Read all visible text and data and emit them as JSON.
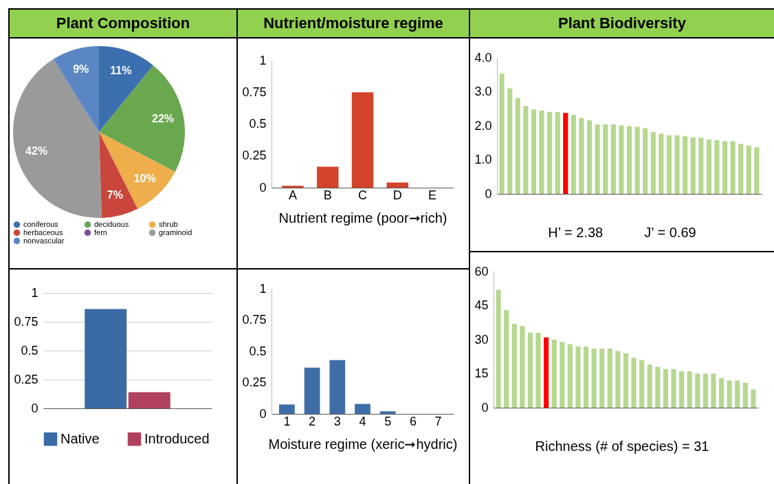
{
  "chart_data": [
    {
      "type": "pie",
      "title": "Plant Composition",
      "categories": [
        "coniferous",
        "deciduous",
        "shrub",
        "herbaceous",
        "fern",
        "graminoid",
        "nonvascular"
      ],
      "values": [
        11,
        22,
        10,
        7,
        0,
        42,
        9
      ],
      "value_labels": [
        "11%",
        "22%",
        "10%",
        "7%",
        null,
        "42%",
        "9%"
      ],
      "colors": [
        "#3b6fb0",
        "#6aa84f",
        "#efae4c",
        "#c8463b",
        "#7b4f9d",
        "#9a9a9a",
        "#5a86c4"
      ],
      "legend": "bottom"
    },
    {
      "type": "bar",
      "categories": [
        null
      ],
      "series": [
        {
          "name": "Native",
          "color": "#3a6ba5",
          "values": [
            0.86
          ]
        },
        {
          "name": "Introduced",
          "color": "#b2405f",
          "values": [
            0.14
          ]
        }
      ],
      "ylim": [
        0,
        1
      ],
      "yticks": [
        0,
        0.25,
        0.5,
        0.75,
        1
      ],
      "grid": "y",
      "legend": "bottom"
    },
    {
      "type": "bar",
      "title": "Nutrient/moisture regime",
      "categories": [
        "A",
        "B",
        "C",
        "D",
        "E"
      ],
      "values": [
        0.015,
        0.165,
        0.75,
        0.04,
        0
      ],
      "color": "#d4432b",
      "ylim": [
        0,
        1
      ],
      "yticks": [
        0,
        0.25,
        0.5,
        0.75,
        1
      ],
      "xlabel": "Nutrient regime (poor➞rich)"
    },
    {
      "type": "bar",
      "categories": [
        "1",
        "2",
        "3",
        "4",
        "5",
        "6",
        "7"
      ],
      "values": [
        0.075,
        0.37,
        0.43,
        0.08,
        0.02,
        0,
        0
      ],
      "color": "#3f6ea6",
      "ylim": [
        0,
        1
      ],
      "yticks": [
        0,
        0.25,
        0.5,
        0.75,
        1
      ],
      "xlabel": "Moisture regime (xeric➞hydric)"
    },
    {
      "type": "bar",
      "title": "Plant Biodiversity",
      "categories": [
        null,
        null,
        null,
        null,
        null,
        null,
        null,
        null,
        null,
        null,
        null,
        null,
        null,
        null,
        null,
        null,
        null,
        null,
        null,
        null,
        null,
        null,
        null,
        null,
        null,
        null,
        null,
        null,
        null,
        null,
        null,
        null,
        null
      ],
      "values": [
        3.53,
        3.1,
        2.82,
        2.58,
        2.48,
        2.45,
        2.41,
        2.4,
        2.38,
        2.32,
        2.23,
        2.16,
        2.04,
        2.04,
        2.04,
        2.01,
        1.99,
        1.97,
        1.93,
        1.82,
        1.77,
        1.72,
        1.72,
        1.69,
        1.66,
        1.65,
        1.6,
        1.58,
        1.55,
        1.55,
        1.47,
        1.42,
        1.37
      ],
      "colors": [
        "#b6d88f",
        "#b6d88f",
        "#b6d88f",
        "#b6d88f",
        "#b6d88f",
        "#b6d88f",
        "#b6d88f",
        "#b6d88f",
        "#ff0000",
        "#b6d88f",
        "#b6d88f",
        "#b6d88f",
        "#b6d88f",
        "#b6d88f",
        "#b6d88f",
        "#b6d88f",
        "#b6d88f",
        "#b6d88f",
        "#b6d88f",
        "#b6d88f",
        "#b6d88f",
        "#b6d88f",
        "#b6d88f",
        "#b6d88f",
        "#b6d88f",
        "#b6d88f",
        "#b6d88f",
        "#b6d88f",
        "#b6d88f",
        "#b6d88f",
        "#b6d88f",
        "#b6d88f",
        "#b6d88f"
      ],
      "ylim": [
        0,
        4
      ],
      "yticks": [
        0,
        {
          "value": 1,
          "label": "1.0"
        },
        {
          "value": 2,
          "label": "2.0"
        },
        {
          "value": 3,
          "label": "3.0"
        },
        {
          "value": 4,
          "label": "4.0"
        }
      ],
      "annotations": [
        "H’ = 2.38",
        "J’ = 0.69"
      ]
    },
    {
      "type": "bar",
      "categories": [
        null,
        null,
        null,
        null,
        null,
        null,
        null,
        null,
        null,
        null,
        null,
        null,
        null,
        null,
        null,
        null,
        null,
        null,
        null,
        null,
        null,
        null,
        null,
        null,
        null,
        null,
        null,
        null,
        null,
        null,
        null,
        null,
        null
      ],
      "values": [
        52,
        43,
        37,
        36,
        33,
        33,
        31,
        30,
        29,
        28,
        27,
        27,
        26,
        26,
        26,
        25,
        24,
        22,
        21,
        19,
        18,
        17,
        17,
        16,
        16,
        15,
        15,
        15,
        13,
        12,
        12,
        11,
        8
      ],
      "colors": [
        "#b6d88f",
        "#b6d88f",
        "#b6d88f",
        "#b6d88f",
        "#b6d88f",
        "#b6d88f",
        "#ff0000",
        "#b6d88f",
        "#b6d88f",
        "#b6d88f",
        "#b6d88f",
        "#b6d88f",
        "#b6d88f",
        "#b6d88f",
        "#b6d88f",
        "#b6d88f",
        "#b6d88f",
        "#b6d88f",
        "#b6d88f",
        "#b6d88f",
        "#b6d88f",
        "#b6d88f",
        "#b6d88f",
        "#b6d88f",
        "#b6d88f",
        "#b6d88f",
        "#b6d88f",
        "#b6d88f",
        "#b6d88f",
        "#b6d88f",
        "#b6d88f",
        "#b6d88f",
        "#b6d88f"
      ],
      "ylim": [
        0,
        60
      ],
      "yticks": [
        0,
        15,
        30,
        45,
        60
      ],
      "annotations": [
        "Richness (# of species) = 31"
      ]
    }
  ]
}
